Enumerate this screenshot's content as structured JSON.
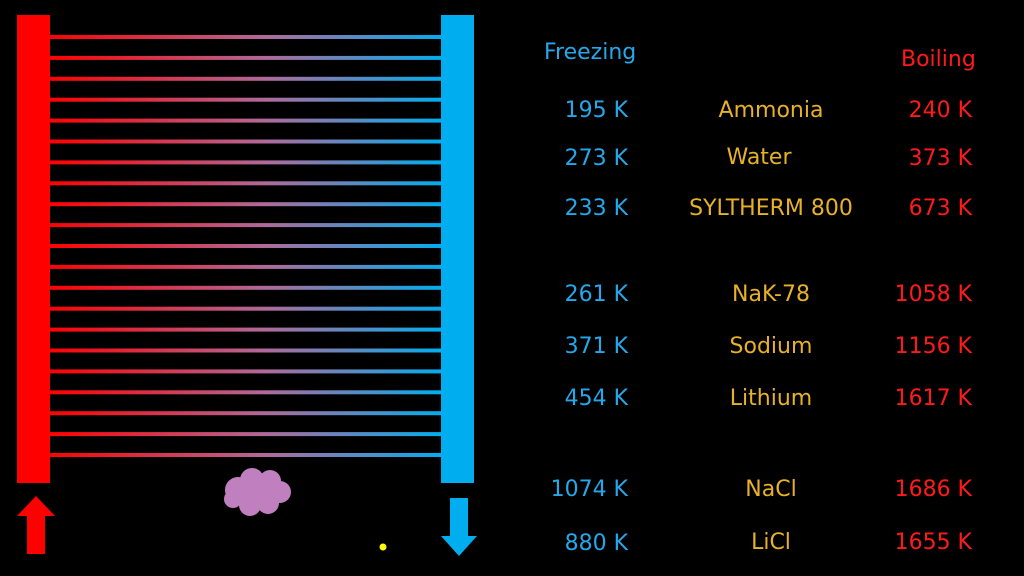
{
  "headers": {
    "freezing": "Freezing",
    "boiling": "Boiling"
  },
  "colors": {
    "hot": "#ff0000",
    "cold": "#00aeef",
    "freezing_text": "#25a8ea",
    "boiling_text": "#ff1a1a",
    "name_text": "#e8b228",
    "cloud": "#c080c0",
    "dot": "#ffff00"
  },
  "radiator": {
    "pipe_count": 21
  },
  "coolants": [
    {
      "name": "Ammonia",
      "freezing": "195 K",
      "boiling": "240 K"
    },
    {
      "name": "Water",
      "freezing": "273 K",
      "boiling": "373 K"
    },
    {
      "name": "SYLTHERM 800",
      "freezing": "233 K",
      "boiling": "673 K"
    },
    {
      "name": "NaK-78",
      "freezing": "261 K",
      "boiling": "1058 K"
    },
    {
      "name": "Sodium",
      "freezing": "371 K",
      "boiling": "1156 K"
    },
    {
      "name": "Lithium",
      "freezing": "454 K",
      "boiling": "1617 K"
    },
    {
      "name": "NaCl",
      "freezing": "1074 K",
      "boiling": "1686 K"
    },
    {
      "name": "LiCl",
      "freezing": "880 K",
      "boiling": "1655 K"
    }
  ]
}
